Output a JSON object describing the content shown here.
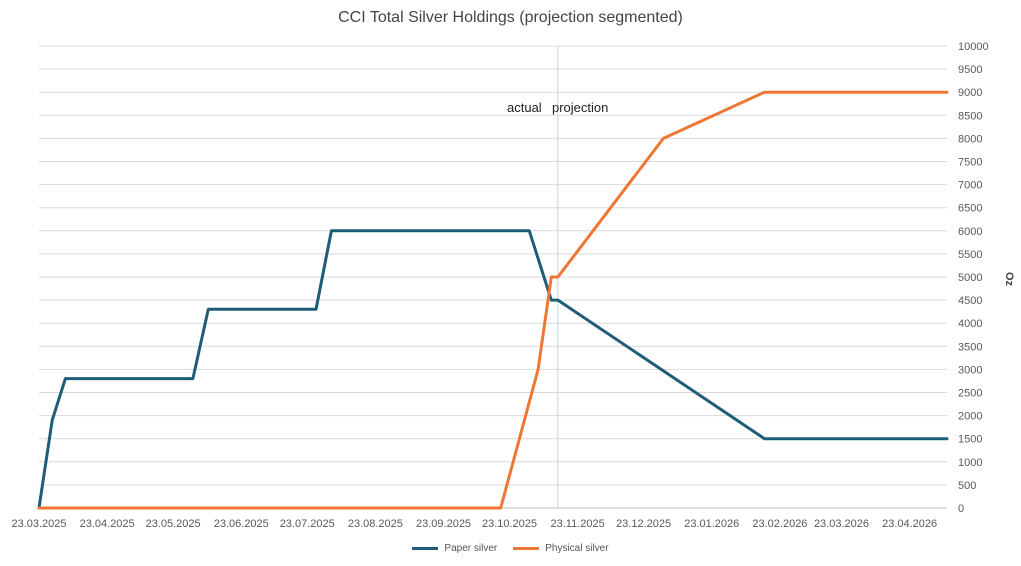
{
  "chart_data": {
    "type": "line",
    "title": "CCI Total Silver Holdings (projection segmented)",
    "ylabel": "Oz",
    "xlabel": "",
    "ylim": [
      0,
      10000
    ],
    "y_ticks": [
      0,
      500,
      1000,
      1500,
      2000,
      2500,
      3000,
      3500,
      4000,
      4500,
      5000,
      5500,
      6000,
      6500,
      7000,
      7500,
      8000,
      8500,
      9000,
      9500,
      10000
    ],
    "x_range": [
      "2025-03-23",
      "2026-05-10"
    ],
    "x_ticks": [
      {
        "date": "2025-03-23",
        "label": "23.03.2025"
      },
      {
        "date": "2025-04-23",
        "label": "23.04.2025"
      },
      {
        "date": "2025-05-23",
        "label": "23.05.2025"
      },
      {
        "date": "2025-06-23",
        "label": "23.06.2025"
      },
      {
        "date": "2025-07-23",
        "label": "23.07.2025"
      },
      {
        "date": "2025-08-23",
        "label": "23.08.2025"
      },
      {
        "date": "2025-09-23",
        "label": "23.09.2025"
      },
      {
        "date": "2025-10-23",
        "label": "23.10.2025"
      },
      {
        "date": "2025-11-23",
        "label": "23.11.2025"
      },
      {
        "date": "2025-12-23",
        "label": "23.12.2025"
      },
      {
        "date": "2026-01-23",
        "label": "23.01.2026"
      },
      {
        "date": "2026-02-23",
        "label": "23.02.2026"
      },
      {
        "date": "2026-03-23",
        "label": "23.03.2026"
      },
      {
        "date": "2026-04-23",
        "label": "23.04.2026"
      }
    ],
    "grid": true,
    "y_axis_side": "right",
    "legend_position": "bottom",
    "divider": {
      "date": "2025-11-14",
      "left_label": "actual",
      "right_label": "projection"
    },
    "series": [
      {
        "name": "Paper silver",
        "color": "#1f5c78",
        "points": [
          {
            "x": "2025-03-23",
            "y": 0
          },
          {
            "x": "2025-03-29",
            "y": 1900
          },
          {
            "x": "2025-04-04",
            "y": 2800
          },
          {
            "x": "2025-06-01",
            "y": 2800
          },
          {
            "x": "2025-06-08",
            "y": 4300
          },
          {
            "x": "2025-07-27",
            "y": 4300
          },
          {
            "x": "2025-08-03",
            "y": 6000
          },
          {
            "x": "2025-11-01",
            "y": 6000
          },
          {
            "x": "2025-11-11",
            "y": 4500
          },
          {
            "x": "2025-11-14",
            "y": 4500
          },
          {
            "x": "2026-02-16",
            "y": 1500
          },
          {
            "x": "2026-05-10",
            "y": 1500
          }
        ]
      },
      {
        "name": "Physical silver",
        "color": "#ee7733",
        "points": [
          {
            "x": "2025-03-23",
            "y": 0
          },
          {
            "x": "2025-10-19",
            "y": 0
          },
          {
            "x": "2025-11-05",
            "y": 3000
          },
          {
            "x": "2025-11-11",
            "y": 5000
          },
          {
            "x": "2025-11-14",
            "y": 5000
          },
          {
            "x": "2026-01-01",
            "y": 8000
          },
          {
            "x": "2026-02-16",
            "y": 9000
          },
          {
            "x": "2026-05-10",
            "y": 9000
          }
        ]
      }
    ]
  }
}
